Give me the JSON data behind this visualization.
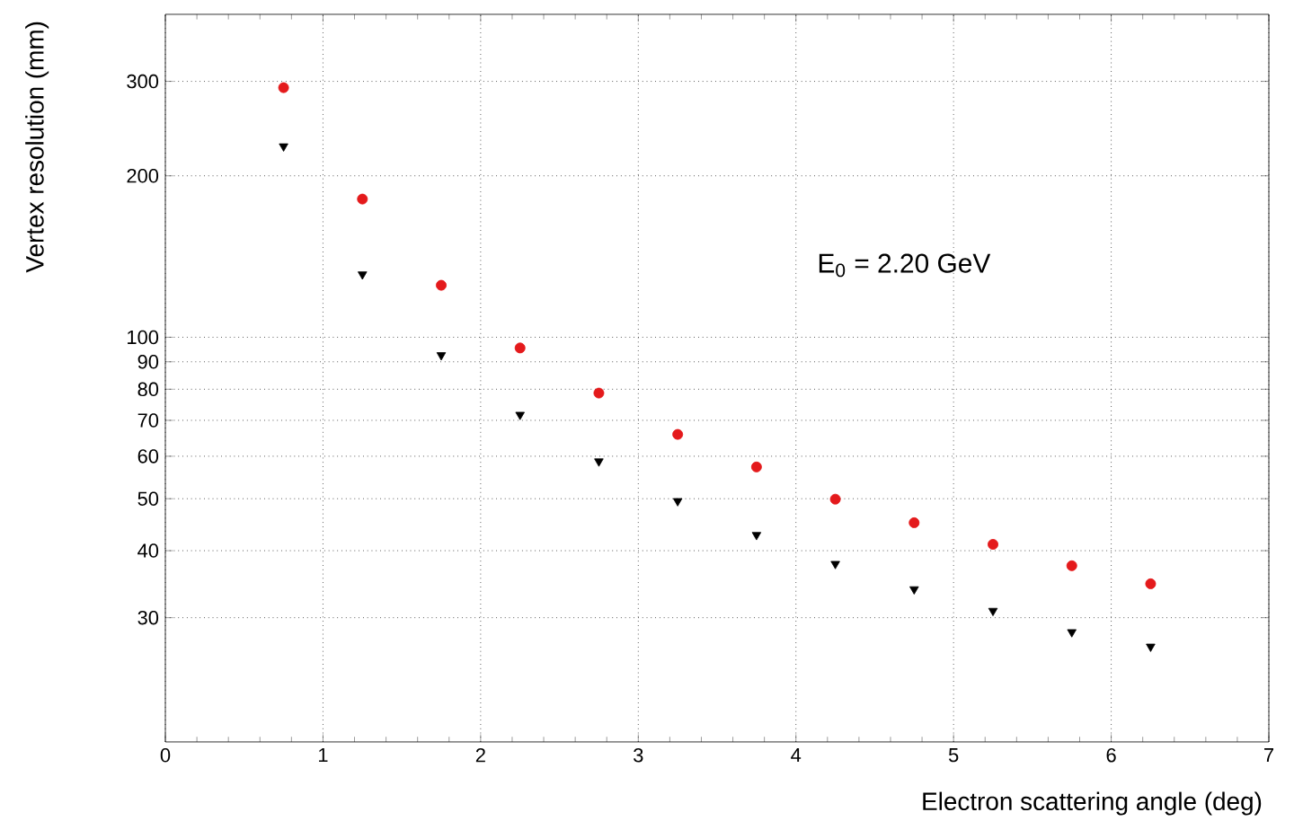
{
  "chart_data": {
    "type": "scatter",
    "xlabel": "Electron scattering angle (deg)",
    "ylabel": "Vertex resolution (mm)",
    "annotations": [
      "E$_{0}$ = 2.20 GeV"
    ],
    "x": [
      0.75,
      1.25,
      1.75,
      2.25,
      2.75,
      3.25,
      3.75,
      4.25,
      4.75,
      5.25,
      5.75,
      6.25
    ],
    "series": [
      {
        "color": "#e41a1c",
        "marker": "circle",
        "values": [
          292,
          181,
          125,
          95.5,
          78.7,
          65.9,
          57.3,
          49.9,
          45.1,
          41.1,
          37.5,
          34.7
        ]
      },
      {
        "color": "#000000",
        "marker": "triangle",
        "values": [
          227,
          131,
          92.6,
          71.7,
          58.7,
          49.5,
          42.8,
          37.8,
          33.9,
          30.9,
          28.2,
          26.5
        ]
      }
    ],
    "log": "y",
    "grid": true,
    "xlim": [
      0,
      7
    ],
    "xticks": [
      0,
      1,
      2,
      3,
      4,
      5,
      6,
      7
    ],
    "ylim": [
      17.6,
      400
    ],
    "yticks": [
      30,
      40,
      50,
      60,
      70,
      80,
      90,
      100,
      200,
      300
    ]
  }
}
